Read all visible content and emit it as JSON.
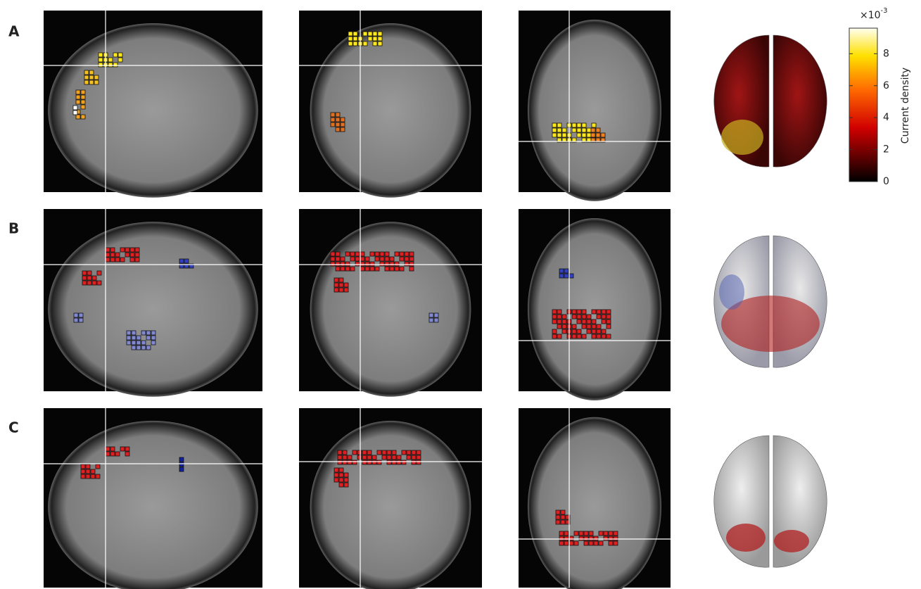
{
  "rows": [
    {
      "label": "A"
    },
    {
      "label": "B"
    },
    {
      "label": "C"
    }
  ],
  "colorbar": {
    "label": "Current density",
    "multiplier": "×10",
    "exponent": "-3",
    "ticks": [
      0,
      2,
      4,
      6,
      8
    ],
    "lim": [
      0,
      9.6
    ]
  }
}
